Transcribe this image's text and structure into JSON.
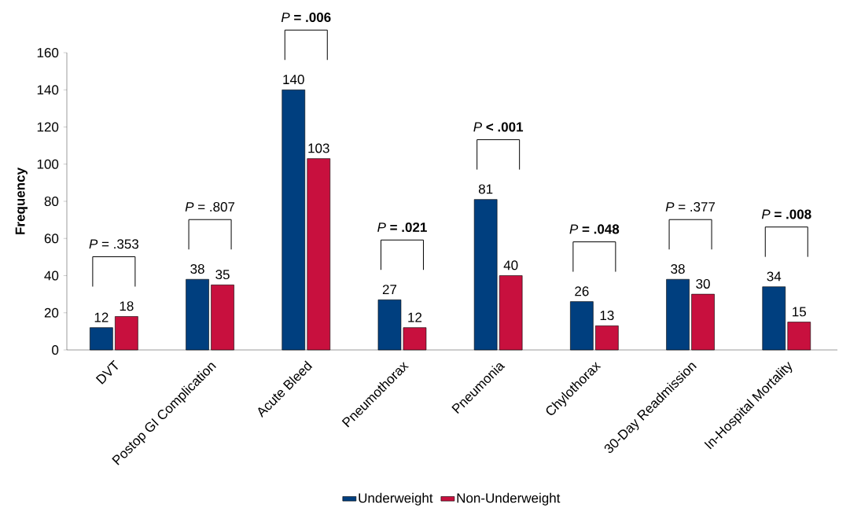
{
  "chart_data": {
    "type": "bar",
    "ylabel": "Frequency",
    "categories": [
      "DVT",
      "Postop GI Complication",
      "Acute Bleed",
      "Pneumothorax",
      "Pneumonia",
      "Chylothorax",
      "30-Day Readmission",
      "In-Hospital Mortality"
    ],
    "series": [
      {
        "name": "Underweight",
        "color": "#003f7f",
        "values": [
          12,
          38,
          140,
          27,
          81,
          26,
          38,
          34
        ]
      },
      {
        "name": "Non-Underweight",
        "color": "#c8103e",
        "values": [
          18,
          35,
          103,
          12,
          40,
          13,
          30,
          15
        ]
      }
    ],
    "ylim": [
      0,
      160
    ],
    "yticks": [
      0,
      20,
      40,
      60,
      80,
      100,
      120,
      140,
      160
    ],
    "data_labels": true,
    "grid": false,
    "legend": "bottom",
    "annotations": [
      "*P* = .353",
      "*P* = .807",
      "*P* **= .006**",
      "*P* **= .021**",
      "*P* **< .001**",
      "*P* **= .048**",
      "*P* = .377",
      "*P* **= .008**"
    ]
  }
}
